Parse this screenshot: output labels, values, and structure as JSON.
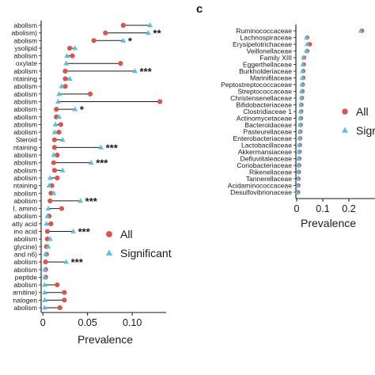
{
  "colors": {
    "all": "#d9534f",
    "significant": "#5bc0de",
    "line": "#1a1a1a"
  },
  "chart_data": [
    {
      "panel": "",
      "type": "dot",
      "xlabel": "Prevalence",
      "xticks": [
        0,
        0.05,
        0.1
      ],
      "xtick_labels": [
        "0",
        "0.05",
        "0.10"
      ],
      "xlim": [
        -0.002,
        0.138
      ],
      "legend": {
        "position": "right",
        "entries": [
          "All",
          "Significant"
        ]
      },
      "rows": [
        {
          "label": "abolism",
          "all": 0.09,
          "sig": 0.12,
          "stars": ""
        },
        {
          "label": "abolism)",
          "all": 0.07,
          "sig": 0.118,
          "stars": "**"
        },
        {
          "label": "abolism",
          "all": 0.057,
          "sig": 0.09,
          "stars": "*"
        },
        {
          "label": "ysolipid",
          "all": 0.03,
          "sig": 0.036,
          "stars": ""
        },
        {
          "label": "abolism",
          "all": 0.033,
          "sig": 0.027,
          "stars": ""
        },
        {
          "label": "oxylate",
          "all": 0.087,
          "sig": 0.026,
          "stars": ""
        },
        {
          "label": "abolism",
          "all": 0.025,
          "sig": 0.103,
          "stars": "***"
        },
        {
          "label": "ntaining",
          "all": 0.025,
          "sig": 0.03,
          "stars": ""
        },
        {
          "label": "abolism",
          "all": 0.025,
          "sig": 0.021,
          "stars": ""
        },
        {
          "label": "abolism",
          "all": 0.053,
          "sig": 0.018,
          "stars": ""
        },
        {
          "label": "abolism",
          "all": 0.131,
          "sig": 0.017,
          "stars": ""
        },
        {
          "label": "abolism",
          "all": 0.015,
          "sig": 0.036,
          "stars": "*"
        },
        {
          "label": "abolism",
          "all": 0.015,
          "sig": 0.018,
          "stars": ""
        },
        {
          "label": "abolism",
          "all": 0.02,
          "sig": 0.014,
          "stars": ""
        },
        {
          "label": "abolism",
          "all": 0.018,
          "sig": 0.013,
          "stars": ""
        },
        {
          "label": "Steroid",
          "all": 0.013,
          "sig": 0.022,
          "stars": ""
        },
        {
          "label": "ntaining",
          "all": 0.013,
          "sig": 0.065,
          "stars": "***"
        },
        {
          "label": "abolism",
          "all": 0.016,
          "sig": 0.012,
          "stars": ""
        },
        {
          "label": "abolism",
          "all": 0.012,
          "sig": 0.054,
          "stars": "***"
        },
        {
          "label": "abolism",
          "all": 0.013,
          "sig": 0.022,
          "stars": ""
        },
        {
          "label": "abolism",
          "all": 0.016,
          "sig": 0.008,
          "stars": ""
        },
        {
          "label": "ntaining",
          "all": 0.01,
          "sig": 0.007,
          "stars": ""
        },
        {
          "label": "abolism",
          "all": 0.009,
          "sig": 0.012,
          "stars": ""
        },
        {
          "label": "abolism",
          "all": 0.008,
          "sig": 0.042,
          "stars": "***"
        },
        {
          "label": "I, amino",
          "all": 0.021,
          "sig": 0.006,
          "stars": ""
        },
        {
          "label": "abolism",
          "all": 0.007,
          "sig": 0.005,
          "stars": ""
        },
        {
          "label": "atty acid",
          "all": 0.009,
          "sig": 0.004,
          "stars": ""
        },
        {
          "label": "ino acid",
          "all": 0.005,
          "sig": 0.034,
          "stars": "***"
        },
        {
          "label": "abolism",
          "all": 0.005,
          "sig": 0.008,
          "stars": ""
        },
        {
          "label": "glycine)",
          "all": 0.004,
          "sig": 0.006,
          "stars": ""
        },
        {
          "label": "and n6)",
          "all": 0.004,
          "sig": 0.003,
          "stars": ""
        },
        {
          "label": "abolism",
          "all": 0.003,
          "sig": 0.026,
          "stars": "***"
        },
        {
          "label": "abolism",
          "all": 0.003,
          "sig": 0.002,
          "stars": ""
        },
        {
          "label": "peptide",
          "all": 0.003,
          "sig": 0.002,
          "stars": ""
        },
        {
          "label": "abolism",
          "all": 0.016,
          "sig": 0.002,
          "stars": ""
        },
        {
          "label": "arnitine)",
          "all": 0.024,
          "sig": 0.002,
          "stars": ""
        },
        {
          "label": "nalogen",
          "all": 0.024,
          "sig": 0.002,
          "stars": ""
        },
        {
          "label": "abolism",
          "all": 0.019,
          "sig": 0.002,
          "stars": ""
        }
      ]
    },
    {
      "panel": "c",
      "type": "dot",
      "xlabel": "Prevalence",
      "xticks": [
        0,
        0.1,
        0.2
      ],
      "xtick_labels": [
        "0",
        "0.1",
        "0.2"
      ],
      "xlim": [
        -0.003,
        0.3
      ],
      "legend": {
        "position": "right",
        "entries": [
          "All",
          "Sigr"
        ]
      },
      "rows": [
        {
          "label": "Ruminococcaceae",
          "all": 0.25,
          "sig": 0.245
        },
        {
          "label": "Lachnospiraceae",
          "all": 0.04,
          "sig": 0.038
        },
        {
          "label": "Erysipelotrichaceae",
          "all": 0.05,
          "sig": 0.04
        },
        {
          "label": "Veillonellaceae",
          "all": 0.04,
          "sig": 0.037
        },
        {
          "label": "Family XIII",
          "all": 0.028,
          "sig": 0.026
        },
        {
          "label": "Eggerthellaceae",
          "all": 0.027,
          "sig": 0.024
        },
        {
          "label": "Burkholderiaceae",
          "all": 0.025,
          "sig": 0.022
        },
        {
          "label": "Marinifilaceae",
          "all": 0.025,
          "sig": 0.022
        },
        {
          "label": "Peptostreptococcaceae",
          "all": 0.023,
          "sig": 0.02
        },
        {
          "label": "Streptococcaceae",
          "all": 0.022,
          "sig": 0.019
        },
        {
          "label": "Christensenellaceae",
          "all": 0.02,
          "sig": 0.018
        },
        {
          "label": "Bifidobacteriaceae",
          "all": 0.018,
          "sig": 0.016
        },
        {
          "label": "Clostridiaceae 1",
          "all": 0.017,
          "sig": 0.015
        },
        {
          "label": "Actinomycetaceae",
          "all": 0.016,
          "sig": 0.014
        },
        {
          "label": "Bacteroidaceae",
          "all": 0.015,
          "sig": 0.013
        },
        {
          "label": "Pasteurellaceae",
          "all": 0.014,
          "sig": 0.012
        },
        {
          "label": "Enterobacteriaceae",
          "all": 0.013,
          "sig": 0.011
        },
        {
          "label": "Lactobacillaceae",
          "all": 0.012,
          "sig": 0.01
        },
        {
          "label": "Akkermansiaceae",
          "all": 0.011,
          "sig": 0.009
        },
        {
          "label": "Defluviitaleaceae",
          "all": 0.01,
          "sig": 0.008
        },
        {
          "label": "Coriobacteriaceae",
          "all": 0.009,
          "sig": 0.007
        },
        {
          "label": "Rikenellaceae",
          "all": 0.008,
          "sig": 0.006
        },
        {
          "label": "Tannerellaceae",
          "all": 0.007,
          "sig": 0.005
        },
        {
          "label": "Acidaminococcaceae",
          "all": 0.006,
          "sig": 0.004
        },
        {
          "label": "Desulfovibrionaceae",
          "all": 0.005,
          "sig": 0.003
        }
      ]
    }
  ]
}
